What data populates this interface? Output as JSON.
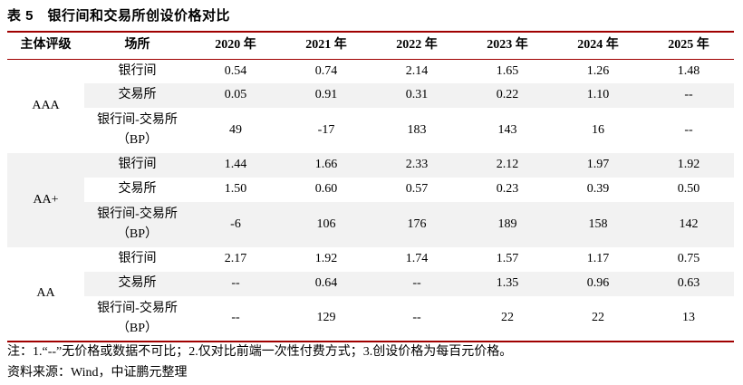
{
  "title": "表 5　银行间和交易所创设价格对比",
  "colors": {
    "accent_red": "#a00000",
    "row_shade": "#f2f2f2"
  },
  "table": {
    "headers": [
      "主体评级",
      "场所",
      "2020 年",
      "2021 年",
      "2022 年",
      "2023 年",
      "2024 年",
      "2025 年"
    ],
    "groups": [
      {
        "rating": "AAA",
        "rows": [
          {
            "venue": "银行间",
            "values": [
              "0.54",
              "0.74",
              "2.14",
              "1.65",
              "1.26",
              "1.48"
            ]
          },
          {
            "venue": "交易所",
            "values": [
              "0.05",
              "0.91",
              "0.31",
              "0.22",
              "1.10",
              "--"
            ]
          },
          {
            "venue": "银行间-交易所",
            "venue_line2": "（BP）",
            "values": [
              "49",
              "-17",
              "183",
              "143",
              "16",
              "--"
            ]
          }
        ]
      },
      {
        "rating": "AA+",
        "rows": [
          {
            "venue": "银行间",
            "values": [
              "1.44",
              "1.66",
              "2.33",
              "2.12",
              "1.97",
              "1.92"
            ]
          },
          {
            "venue": "交易所",
            "values": [
              "1.50",
              "0.60",
              "0.57",
              "0.23",
              "0.39",
              "0.50"
            ]
          },
          {
            "venue": "银行间-交易所",
            "venue_line2": "（BP）",
            "values": [
              "-6",
              "106",
              "176",
              "189",
              "158",
              "142"
            ]
          }
        ]
      },
      {
        "rating": "AA",
        "rows": [
          {
            "venue": "银行间",
            "values": [
              "2.17",
              "1.92",
              "1.74",
              "1.57",
              "1.17",
              "0.75"
            ]
          },
          {
            "venue": "交易所",
            "values": [
              "--",
              "0.64",
              "--",
              "1.35",
              "0.96",
              "0.63"
            ]
          },
          {
            "venue": "银行间-交易所",
            "venue_line2": "（BP）",
            "values": [
              "--",
              "129",
              "--",
              "22",
              "22",
              "13"
            ]
          }
        ]
      }
    ]
  },
  "notes": {
    "note": "注：1.“--”无价格或数据不可比；2.仅对比前端一次性付费方式；3.创设价格为每百元价格。",
    "source": "资料来源：Wind，中证鹏元整理"
  }
}
